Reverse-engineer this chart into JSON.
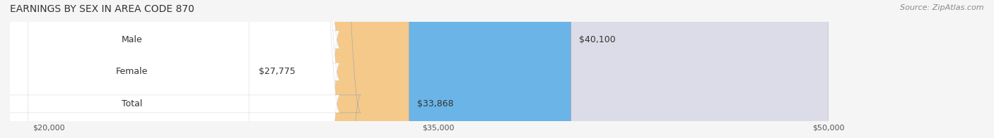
{
  "title": "EARNINGS BY SEX IN AREA CODE 870",
  "source": "Source: ZipAtlas.com",
  "categories": [
    "Male",
    "Female",
    "Total"
  ],
  "values": [
    40100,
    27775,
    33868
  ],
  "value_labels": [
    "$40,100",
    "$27,775",
    "$33,868"
  ],
  "bar_colors": [
    "#6ab4e8",
    "#f4a8bc",
    "#f5c98a"
  ],
  "bg_bar_color": "#dcdce8",
  "xmin": 20000,
  "xmax": 50000,
  "xticks": [
    20000,
    35000,
    50000
  ],
  "xtick_labels": [
    "$20,000",
    "$35,000",
    "$50,000"
  ],
  "title_fontsize": 10,
  "source_fontsize": 8,
  "label_fontsize": 9,
  "value_fontsize": 9,
  "tick_fontsize": 8,
  "background_color": "#f5f5f5"
}
